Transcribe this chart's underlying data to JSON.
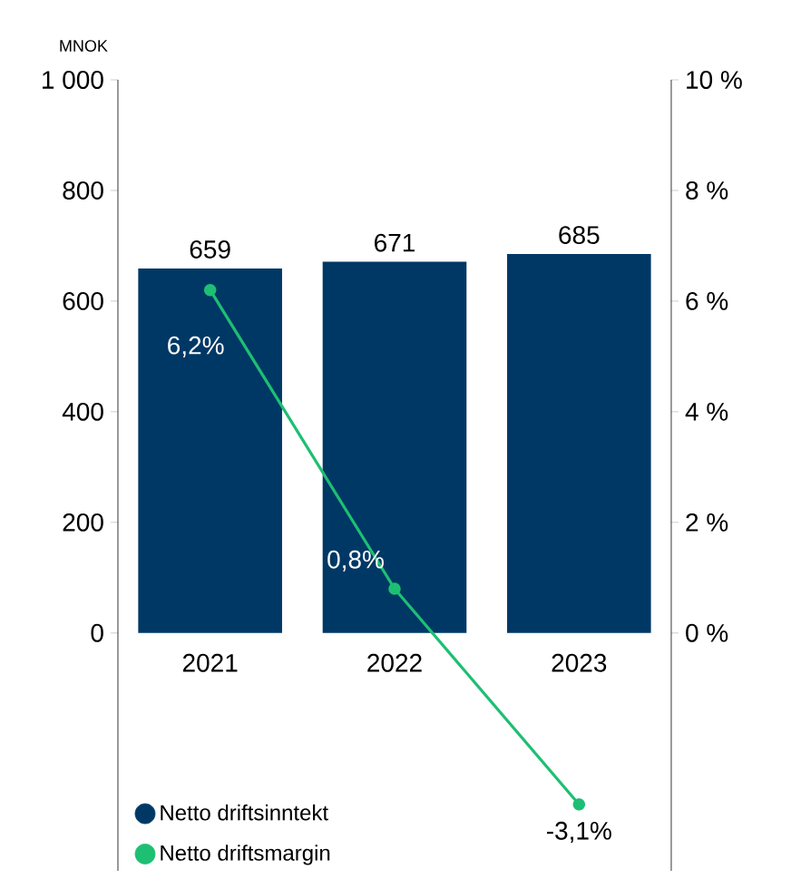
{
  "chart_data": {
    "type": "bar",
    "categories": [
      "2021",
      "2022",
      "2023"
    ],
    "ylabel": "MNOK",
    "ylim": [
      -430,
      1000
    ],
    "yticks": [
      0,
      200,
      400,
      600,
      800,
      {
        "value": 1000,
        "label": "1 000"
      }
    ],
    "y2lim": [
      -4.3,
      10
    ],
    "y2ticks": [
      {
        "value": 0,
        "label": "0 %"
      },
      {
        "value": 2,
        "label": "2 %"
      },
      {
        "value": 4,
        "label": "4 %"
      },
      {
        "value": 6,
        "label": "6 %"
      },
      {
        "value": 8,
        "label": "8 %"
      },
      {
        "value": 10,
        "label": "10 %"
      }
    ],
    "legend": "bottom left",
    "marker": "circle",
    "series": [
      {
        "name": "Netto driftsinntekt",
        "color": "#003865",
        "values": [
          659,
          671,
          685
        ],
        "value_labels": [
          "659",
          "671",
          "685"
        ]
      },
      {
        "name": "Netto driftsmargin",
        "type": "line",
        "axis": "y2",
        "color": "#1dbf73",
        "values": [
          6.2,
          0.8,
          -3.1
        ],
        "value_labels": [
          "6,2%",
          "0,8%",
          "-3,1%"
        ]
      }
    ]
  }
}
